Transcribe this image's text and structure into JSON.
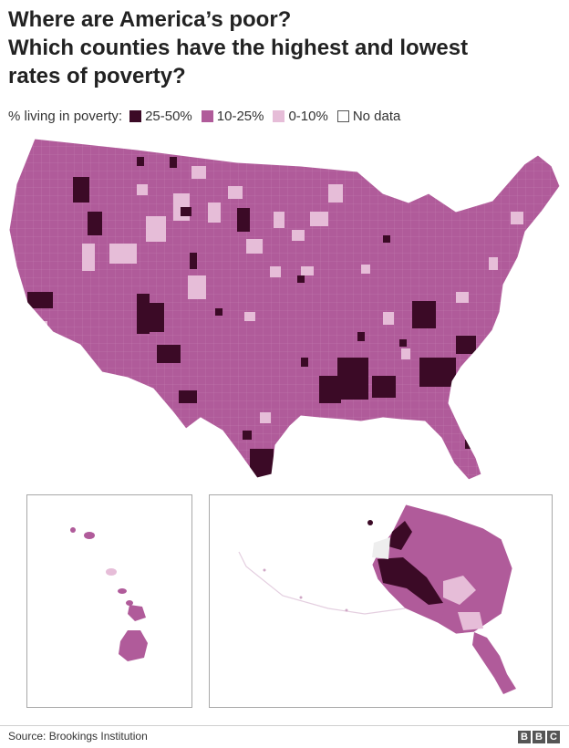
{
  "title": {
    "line1": "Where are America’s poor?",
    "line2": "Which counties have the highest and lowest",
    "line3": "rates of poverty?"
  },
  "legend": {
    "label": "% living in poverty:",
    "items": [
      {
        "label": "25-50%",
        "color": "#3b0a26"
      },
      {
        "label": "10-25%",
        "color": "#b05b9a"
      },
      {
        "label": "0-10%",
        "color": "#e6bdd8"
      },
      {
        "label": "No data",
        "color": "#ffffff"
      }
    ]
  },
  "footer": {
    "source": "Source: Brookings Institution",
    "logo": [
      "B",
      "B",
      "C"
    ]
  }
}
